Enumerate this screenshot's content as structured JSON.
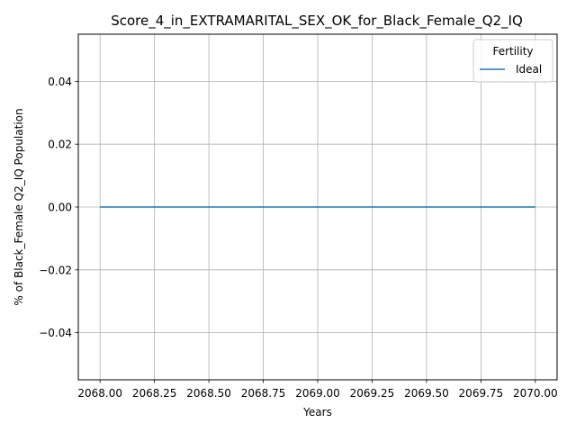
{
  "chart_data": {
    "type": "line",
    "title": "Score_4_in_EXTRAMARITAL_SEX_OK_for_Black_Female_Q2_IQ",
    "xlabel": "Years",
    "ylabel": "% of Black_Female Q2_IQ Population",
    "xlim": [
      2067.9,
      2070.1
    ],
    "ylim": [
      -0.055,
      0.055
    ],
    "x_ticks": [
      2068.0,
      2068.25,
      2068.5,
      2068.75,
      2069.0,
      2069.25,
      2069.5,
      2069.75,
      2070.0
    ],
    "x_tick_labels": [
      "2068.00",
      "2068.25",
      "2068.50",
      "2068.75",
      "2069.00",
      "2069.25",
      "2069.50",
      "2069.75",
      "2070.00"
    ],
    "y_ticks": [
      -0.04,
      -0.02,
      0.0,
      0.02,
      0.04
    ],
    "y_tick_labels": [
      "−0.04",
      "−0.02",
      "0.00",
      "0.02",
      "0.04"
    ],
    "grid": true,
    "legend": {
      "title": "Fertility",
      "placement": "top-right"
    },
    "series": [
      {
        "name": "Ideal",
        "color": "#1f77b4",
        "x": [
          2068,
          2069,
          2070
        ],
        "values": [
          0,
          0,
          0
        ]
      }
    ]
  }
}
